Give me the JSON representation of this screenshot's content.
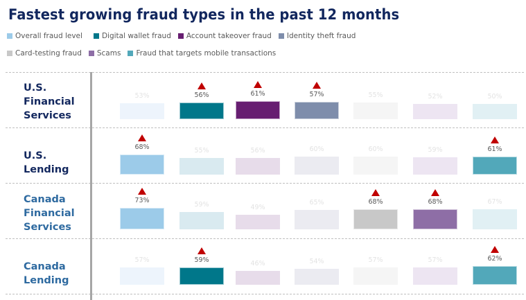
{
  "title": "Fastest growing fraud types in the past 12 months",
  "legend": [
    {
      "label": "Overall fraud level",
      "color": "#9ccbe9"
    },
    {
      "label": "Digital wallet fraud",
      "color": "#00778a"
    },
    {
      "label": "Account takeover fraud",
      "color": "#671e71"
    },
    {
      "label": "Identity theft fraud",
      "color": "#7e8dab"
    },
    {
      "label": "Card-testing fraud",
      "color": "#c8c8c8"
    },
    {
      "label": "Scams",
      "color": "#8e6ea6"
    },
    {
      "label": "Fraud that targets mobile transactions",
      "color": "#52a8ba"
    }
  ],
  "faded_colors": [
    "#edf4fc",
    "#d9eaf0",
    "#e7dcea",
    "#ebebf1",
    "#f5f5f5",
    "#ede5f2",
    "#e1f0f4"
  ],
  "rows": [
    {
      "label_lines": [
        "U.S.",
        "Financial",
        "Services"
      ],
      "region": "us"
    },
    {
      "label_lines": [
        "U.S.",
        "Lending"
      ],
      "region": "us"
    },
    {
      "label_lines": [
        "Canada",
        "Financial",
        "Services"
      ],
      "region": "ca"
    },
    {
      "label_lines": [
        "Canada",
        "Lending"
      ],
      "region": "ca"
    }
  ],
  "chart_data": {
    "type": "bar",
    "title": "Fastest growing fraud types in the past 12 months",
    "categories": [
      "U.S. Financial Services",
      "U.S. Lending",
      "Canada Financial Services",
      "Canada Lending"
    ],
    "series": [
      {
        "name": "Overall fraud level",
        "values": [
          53,
          68,
          73,
          57
        ],
        "highlighted": [
          false,
          true,
          true,
          false
        ]
      },
      {
        "name": "Digital wallet fraud",
        "values": [
          56,
          55,
          59,
          59
        ],
        "highlighted": [
          true,
          false,
          false,
          true
        ]
      },
      {
        "name": "Account takeover fraud",
        "values": [
          61,
          56,
          49,
          46
        ],
        "highlighted": [
          true,
          false,
          false,
          false
        ]
      },
      {
        "name": "Identity theft fraud",
        "values": [
          57,
          60,
          65,
          54
        ],
        "highlighted": [
          true,
          false,
          false,
          false
        ]
      },
      {
        "name": "Card-testing fraud",
        "values": [
          55,
          60,
          68,
          57
        ],
        "highlighted": [
          false,
          false,
          true,
          false
        ]
      },
      {
        "name": "Scams",
        "values": [
          52,
          59,
          68,
          57
        ],
        "highlighted": [
          false,
          false,
          true,
          false
        ]
      },
      {
        "name": "Fraud that targets mobile transactions",
        "values": [
          50,
          61,
          67,
          62
        ],
        "highlighted": [
          false,
          true,
          false,
          true
        ]
      }
    ],
    "value_suffix": "%",
    "annotations": "Red up-triangle marks highlighted (fastest growing) fraud types per segment",
    "legend_position": "top",
    "grid": "dashed horizontal separators between segments"
  }
}
